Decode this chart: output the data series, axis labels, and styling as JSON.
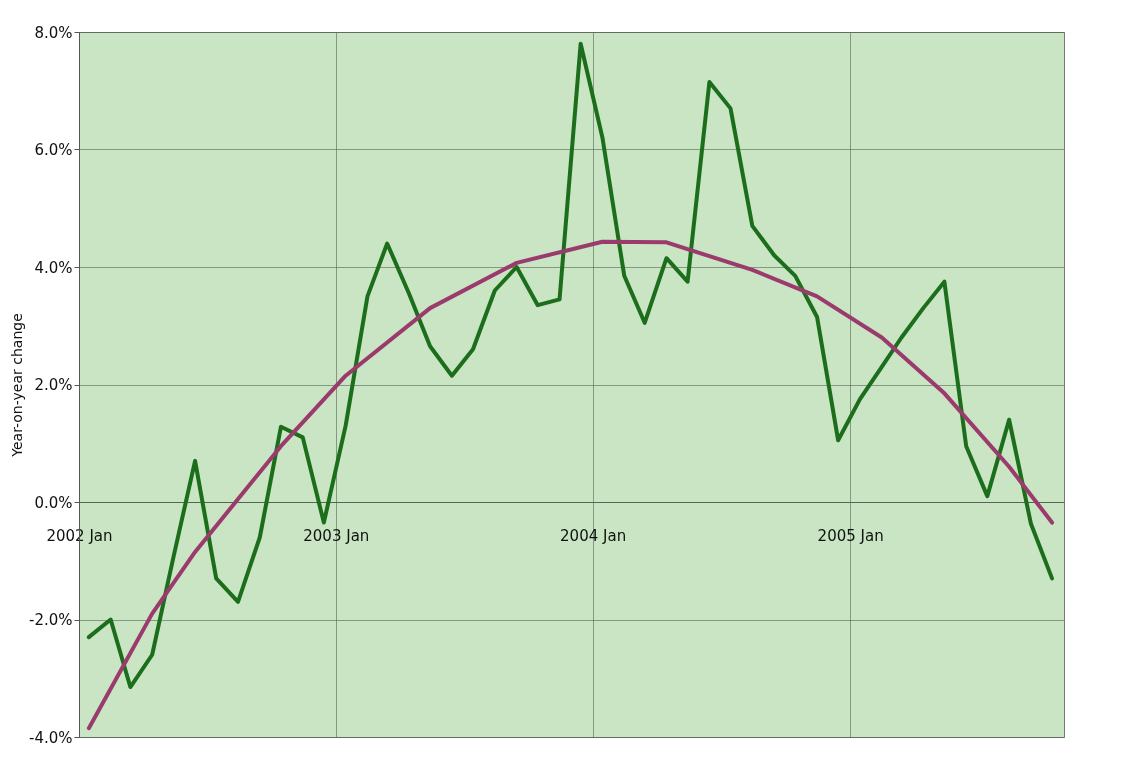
{
  "chart_data": {
    "type": "line",
    "ylabel": "Year-on-year change",
    "x": [
      "2002-01-15",
      "2002-02-15",
      "2002-03-15",
      "2002-04-15",
      "2002-05-15",
      "2002-06-15",
      "2002-07-15",
      "2002-08-15",
      "2002-09-15",
      "2002-10-15",
      "2002-11-15",
      "2002-12-15",
      "2003-01-15",
      "2003-02-15",
      "2003-03-15",
      "2003-04-15",
      "2003-05-15",
      "2003-06-15",
      "2003-07-15",
      "2003-08-15",
      "2003-09-15",
      "2003-10-15",
      "2003-11-15",
      "2003-12-15",
      "2004-01-15",
      "2004-02-15",
      "2004-03-15",
      "2004-04-15",
      "2004-05-15",
      "2004-06-15",
      "2004-07-15",
      "2004-08-15",
      "2004-09-15",
      "2004-10-15",
      "2004-11-15",
      "2004-12-15",
      "2005-01-15",
      "2005-02-15",
      "2005-03-15",
      "2005-04-15",
      "2005-05-15",
      "2005-06-15",
      "2005-07-15",
      "2005-08-15",
      "2005-09-15",
      "2005-10-15"
    ],
    "series": [
      {
        "color": "#1c6e1c",
        "values": [
          -2.3,
          -2.0,
          -3.15,
          -2.6,
          -0.95,
          0.7,
          -1.3,
          -1.7,
          -0.6,
          1.28,
          1.1,
          -0.35,
          1.3,
          3.5,
          4.4,
          3.55,
          2.65,
          2.15,
          2.6,
          3.6,
          4.0,
          3.35,
          3.45,
          7.8,
          6.2,
          3.85,
          3.05,
          4.15,
          3.75,
          7.15,
          6.7,
          4.7,
          4.2,
          3.85,
          3.15,
          1.05,
          1.75,
          2.3,
          2.8,
          3.3,
          3.75,
          0.95,
          0.1,
          1.4,
          -0.37,
          -1.3
        ]
      },
      {
        "type": "line",
        "color": "#9b3a6c",
        "x": [
          "2002-01-15",
          "2002-04-15",
          "2002-06-15",
          "2002-10-15",
          "2003-01-15",
          "2003-05-15",
          "2003-09-15",
          "2004-01-15",
          "2004-04-15",
          "2004-08-15",
          "2004-11-15",
          "2005-02-15",
          "2005-05-15",
          "2005-08-15",
          "2005-10-15"
        ],
        "values": [
          -3.85,
          -1.9,
          -0.85,
          0.95,
          2.15,
          3.3,
          4.07,
          4.43,
          4.42,
          3.95,
          3.5,
          2.8,
          1.85,
          0.6,
          -0.35
        ]
      }
    ],
    "xlim": [
      "2002-01-01",
      "2005-11-01"
    ],
    "xticks": [
      {
        "value": "2002-01-01",
        "label": "2002 Jan"
      },
      {
        "value": "2003-01-01",
        "label": "2003 Jan"
      },
      {
        "value": "2004-01-01",
        "label": "2004 Jan"
      },
      {
        "value": "2005-01-01",
        "label": "2005 Jan"
      }
    ],
    "ylim": [
      -4,
      8
    ],
    "yticks": [
      {
        "value": -4,
        "label": "-4.0%"
      },
      {
        "value": -2,
        "label": "-2.0%"
      },
      {
        "value": 0,
        "label": "0.0%"
      },
      {
        "value": 2,
        "label": "2.0%"
      },
      {
        "value": 4,
        "label": "4.0%"
      },
      {
        "value": 6,
        "label": "6.0%"
      },
      {
        "value": 8,
        "label": "8.0%"
      }
    ],
    "grid": true,
    "marker": "none",
    "line_style": "solid"
  }
}
